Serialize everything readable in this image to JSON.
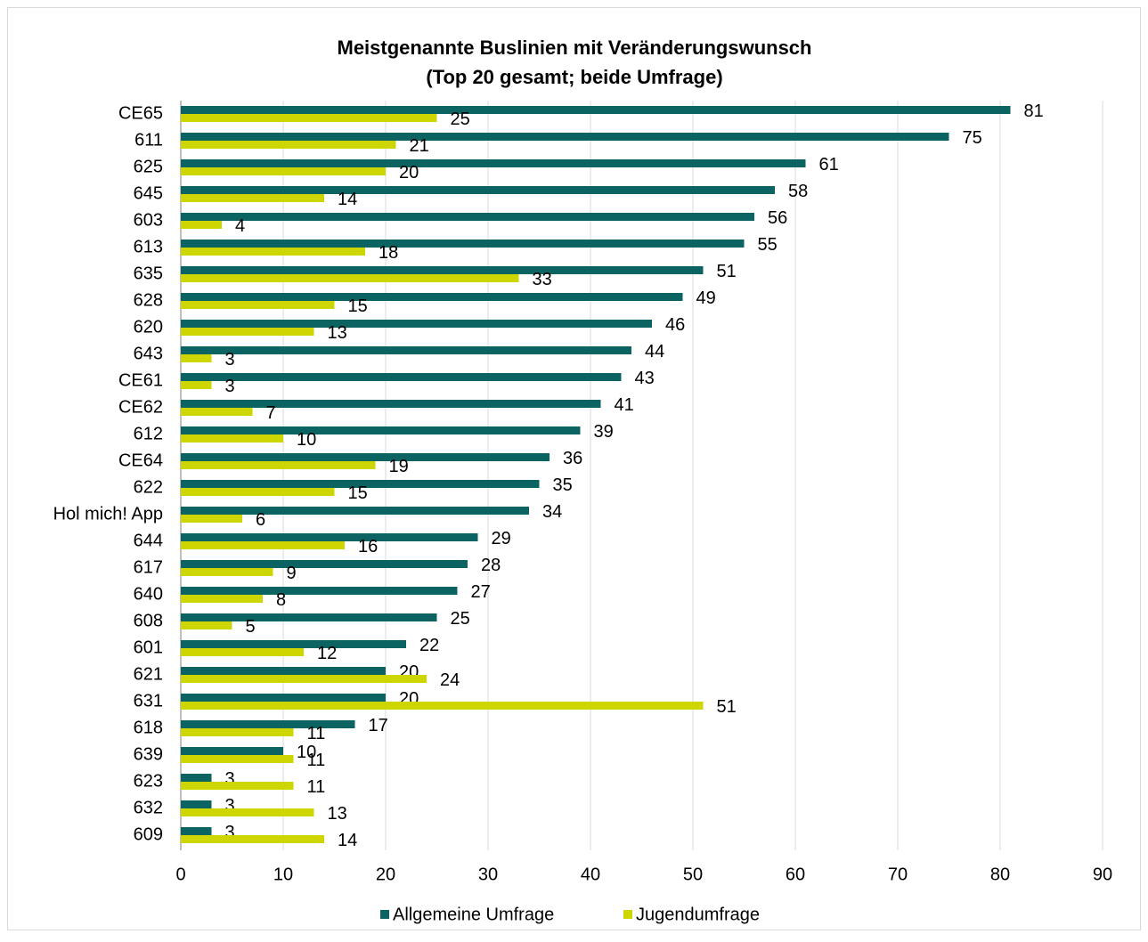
{
  "chart_data": {
    "type": "hbar",
    "title": "Meistgenannte Buslinien mit Veränderungswunsch",
    "subtitle": "(Top 20 gesamt; beide Umfrage)",
    "categories": [
      "CE65",
      "611",
      "625",
      "645",
      "603",
      "613",
      "635",
      "628",
      "620",
      "643",
      "CE61",
      "CE62",
      "612",
      "CE64",
      "622",
      "Hol mich! App",
      "644",
      "617",
      "640",
      "608",
      "601",
      "621",
      "631",
      "618",
      "639",
      "623",
      "632",
      "609"
    ],
    "series": [
      {
        "name": "Allgemeine Umfrage",
        "color": "#0b6461",
        "values": [
          81,
          75,
          61,
          58,
          56,
          55,
          51,
          49,
          46,
          44,
          43,
          41,
          39,
          36,
          35,
          34,
          29,
          28,
          27,
          25,
          22,
          20,
          20,
          17,
          10,
          3,
          3,
          3
        ]
      },
      {
        "name": "Jugendumfrage",
        "color": "#cdd600",
        "values": [
          25,
          21,
          20,
          14,
          4,
          18,
          33,
          15,
          13,
          3,
          3,
          7,
          10,
          19,
          15,
          6,
          16,
          9,
          8,
          5,
          12,
          24,
          51,
          11,
          11,
          11,
          13,
          14
        ]
      }
    ],
    "xlim": [
      0,
      90
    ],
    "xticks": [
      0,
      10,
      20,
      30,
      40,
      50,
      60,
      70,
      80,
      90
    ],
    "grid": true,
    "legend": "bottom"
  }
}
